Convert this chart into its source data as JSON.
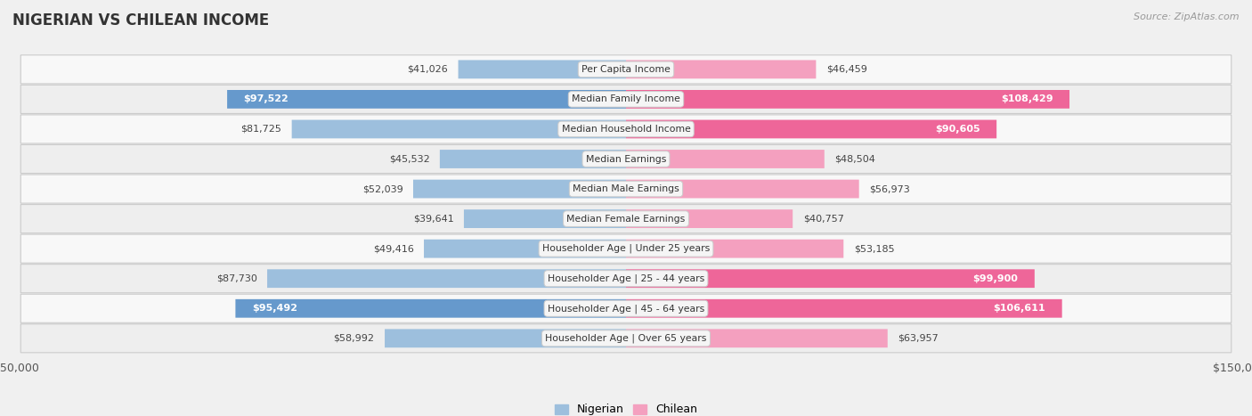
{
  "title": "NIGERIAN VS CHILEAN INCOME",
  "source": "Source: ZipAtlas.com",
  "max_value": 150000,
  "categories": [
    "Per Capita Income",
    "Median Family Income",
    "Median Household Income",
    "Median Earnings",
    "Median Male Earnings",
    "Median Female Earnings",
    "Householder Age | Under 25 years",
    "Householder Age | 25 - 44 years",
    "Householder Age | 45 - 64 years",
    "Householder Age | Over 65 years"
  ],
  "nigerian": [
    41026,
    97522,
    81725,
    45532,
    52039,
    39641,
    49416,
    87730,
    95492,
    58992
  ],
  "chilean": [
    46459,
    108429,
    90605,
    48504,
    56973,
    40757,
    53185,
    99900,
    106611,
    63957
  ],
  "nigerian_labels": [
    "$41,026",
    "$97,522",
    "$81,725",
    "$45,532",
    "$52,039",
    "$39,641",
    "$49,416",
    "$87,730",
    "$95,492",
    "$58,992"
  ],
  "chilean_labels": [
    "$46,459",
    "$108,429",
    "$90,605",
    "$48,504",
    "$56,973",
    "$40,757",
    "$53,185",
    "$99,900",
    "$106,611",
    "$63,957"
  ],
  "nigerian_color": "#9dbfdd",
  "chilean_color": "#f4a0bf",
  "nigerian_color_bold": "#6699cc",
  "chilean_color_bold": "#ee6699",
  "bg_color": "#f0f0f0",
  "row_colors": [
    "#f8f8f8",
    "#eeeeee"
  ],
  "nigerian_bold": [
    false,
    true,
    false,
    false,
    false,
    false,
    false,
    false,
    true,
    false
  ],
  "chilean_bold": [
    false,
    true,
    true,
    false,
    false,
    false,
    false,
    true,
    true,
    false
  ]
}
